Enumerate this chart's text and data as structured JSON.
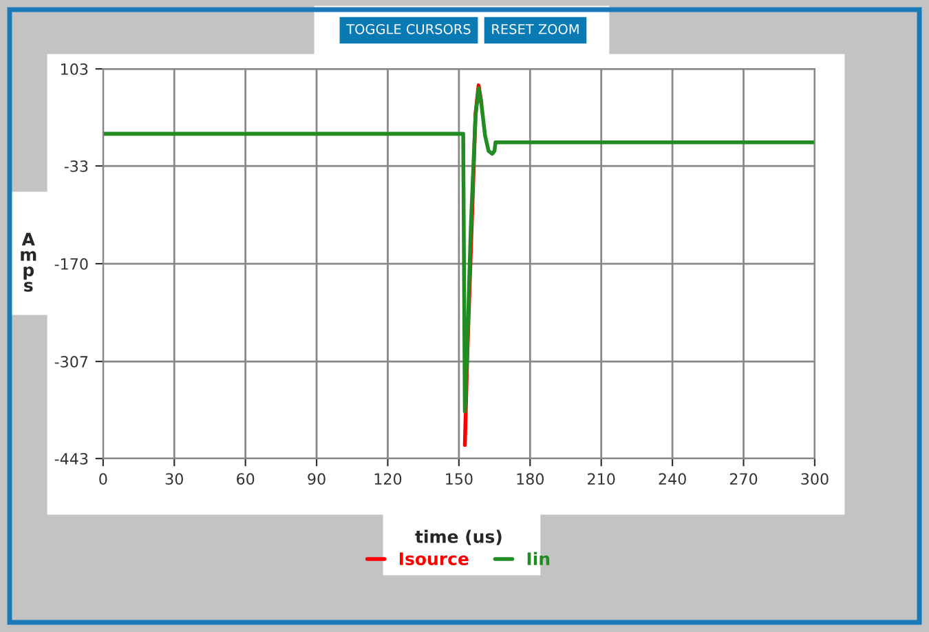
{
  "chart_data": {
    "type": "line",
    "xlabel": "time (us)",
    "ylabel": "Amps",
    "x": [
      0,
      151.8,
      152.5,
      153.5,
      155,
      157,
      158.3,
      159.5,
      161,
      162.5,
      164,
      165,
      165.4,
      300
    ],
    "series": [
      {
        "name": "Isource",
        "color": "#ff0000",
        "values": [
          null,
          null,
          -424,
          -300,
          null,
          40,
          80,
          55,
          null,
          null,
          null,
          null,
          null,
          null
        ]
      },
      {
        "name": "Iin",
        "color": "#228b22",
        "values": [
          12,
          12,
          -377,
          -290,
          -120,
          38,
          76,
          53,
          10,
          -12,
          -16,
          -12,
          0,
          0
        ]
      }
    ],
    "xlim": [
      0,
      300
    ],
    "xticks": [
      0,
      30,
      60,
      90,
      120,
      150,
      180,
      210,
      240,
      270,
      300
    ],
    "ylim": [
      -443,
      103
    ],
    "yticks": [
      -443,
      -307,
      -170,
      -33,
      103
    ],
    "grid": true,
    "legend": "bottom",
    "marker": "none",
    "line_style": "solid",
    "annotations": [
      "TOGGLE CURSORS",
      "RESET ZOOM"
    ]
  }
}
